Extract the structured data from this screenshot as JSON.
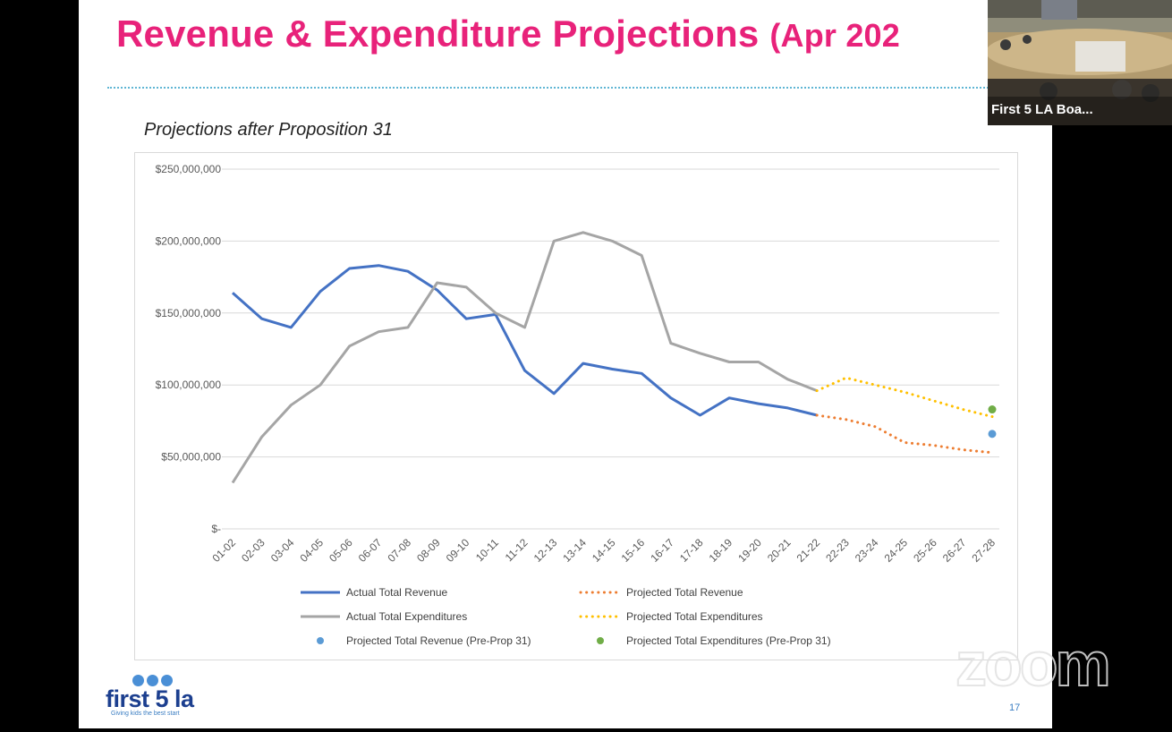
{
  "slide": {
    "title_main": "Revenue & Expenditure Projections",
    "title_paren": "(Apr 202",
    "page_number": "17"
  },
  "logo": {
    "text": "first 5 la",
    "tagline": "Giving kids the best start"
  },
  "video": {
    "participant_name": "First 5 LA Boa..."
  },
  "watermark": "zoom",
  "chart_data": {
    "type": "line",
    "title": "Projections after Proposition 31",
    "xlabel": "",
    "ylabel": "",
    "ylim": [
      0,
      250000000
    ],
    "grid": true,
    "legend_position": "bottom",
    "y_ticks": [
      {
        "value": 0,
        "label": "$-"
      },
      {
        "value": 50000000,
        "label": "$50,000,000"
      },
      {
        "value": 100000000,
        "label": "$100,000,000"
      },
      {
        "value": 150000000,
        "label": "$150,000,000"
      },
      {
        "value": 200000000,
        "label": "$200,000,000"
      },
      {
        "value": 250000000,
        "label": "$250,000,000"
      }
    ],
    "categories": [
      "01-02",
      "02-03",
      "03-04",
      "04-05",
      "05-06",
      "06-07",
      "07-08",
      "08-09",
      "09-10",
      "10-11",
      "11-12",
      "12-13",
      "13-14",
      "14-15",
      "15-16",
      "16-17",
      "17-18",
      "18-19",
      "19-20",
      "20-21",
      "21-22",
      "22-23",
      "23-24",
      "24-25",
      "25-26",
      "26-27",
      "27-28"
    ],
    "series": [
      {
        "name": "Actual Total Revenue",
        "color": "#4472c4",
        "style": "solid",
        "values": [
          164000000,
          146000000,
          140000000,
          165000000,
          181000000,
          183000000,
          179000000,
          166000000,
          146000000,
          149000000,
          110000000,
          94000000,
          115000000,
          111000000,
          108000000,
          91000000,
          79000000,
          91000000,
          87000000,
          84000000,
          79000000,
          null,
          null,
          null,
          null,
          null,
          null
        ]
      },
      {
        "name": "Actual Total Expenditures",
        "color": "#a5a5a5",
        "style": "solid",
        "values": [
          32000000,
          64000000,
          86000000,
          100000000,
          127000000,
          137000000,
          140000000,
          171000000,
          168000000,
          150000000,
          140000000,
          200000000,
          206000000,
          200000000,
          190000000,
          129000000,
          122000000,
          116000000,
          116000000,
          104000000,
          96000000,
          null,
          null,
          null,
          null,
          null,
          null
        ]
      },
      {
        "name": "Projected Total Revenue",
        "color": "#ed7d31",
        "style": "dotted",
        "values": [
          null,
          null,
          null,
          null,
          null,
          null,
          null,
          null,
          null,
          null,
          null,
          null,
          null,
          null,
          null,
          null,
          null,
          null,
          null,
          null,
          79000000,
          76000000,
          71000000,
          60000000,
          58000000,
          55000000,
          53000000
        ]
      },
      {
        "name": "Projected Total Expenditures",
        "color": "#ffc000",
        "style": "dotted",
        "values": [
          null,
          null,
          null,
          null,
          null,
          null,
          null,
          null,
          null,
          null,
          null,
          null,
          null,
          null,
          null,
          null,
          null,
          null,
          null,
          null,
          96000000,
          105000000,
          100000000,
          95000000,
          89000000,
          83000000,
          78000000
        ]
      },
      {
        "name": "Projected Total Revenue (Pre-Prop 31)",
        "color": "#5b9bd5",
        "style": "marker",
        "values": [
          null,
          null,
          null,
          null,
          null,
          null,
          null,
          null,
          null,
          null,
          null,
          null,
          null,
          null,
          null,
          null,
          null,
          null,
          null,
          null,
          null,
          null,
          null,
          null,
          null,
          null,
          66000000
        ]
      },
      {
        "name": "Projected Total Expenditures (Pre-Prop 31)",
        "color": "#70ad47",
        "style": "marker",
        "values": [
          null,
          null,
          null,
          null,
          null,
          null,
          null,
          null,
          null,
          null,
          null,
          null,
          null,
          null,
          null,
          null,
          null,
          null,
          null,
          null,
          null,
          null,
          null,
          null,
          null,
          null,
          83000000
        ]
      }
    ]
  }
}
